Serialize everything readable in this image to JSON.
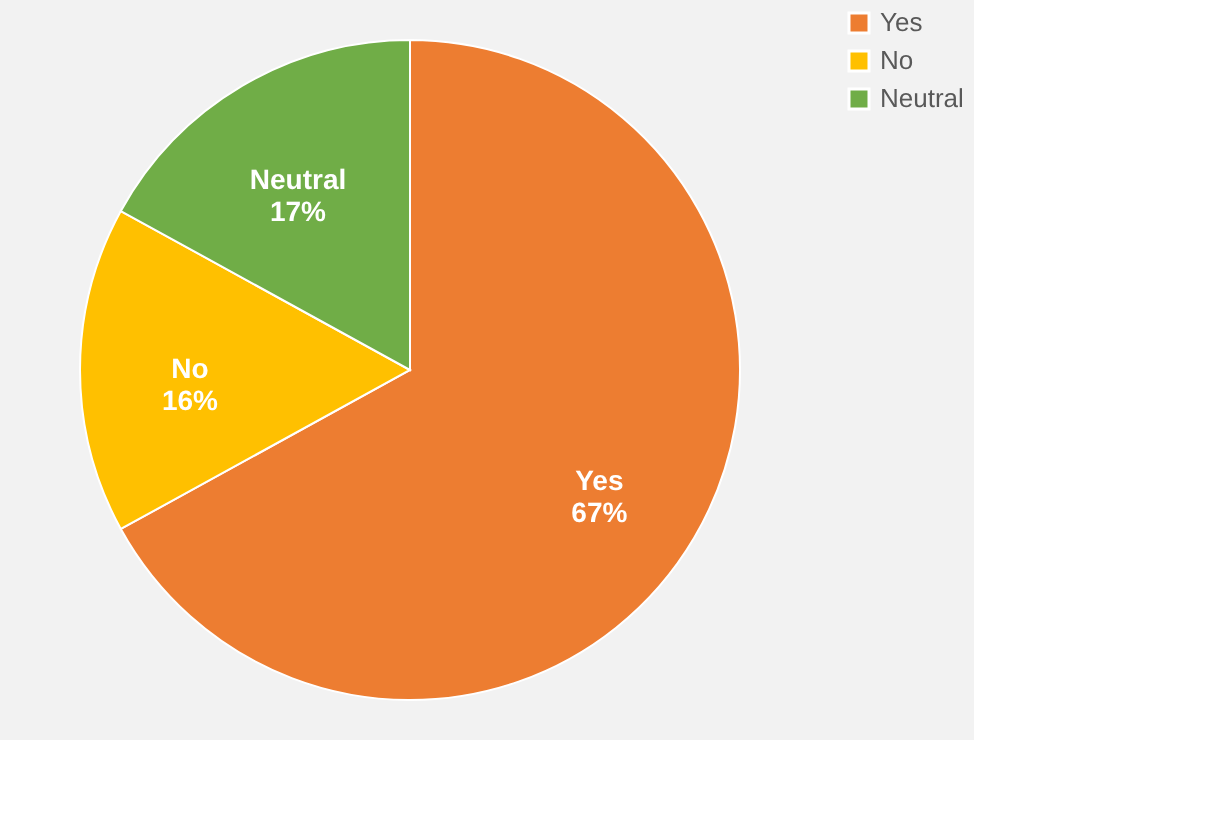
{
  "chart_data": {
    "type": "pie",
    "categories": [
      "Yes",
      "No",
      "Neutral"
    ],
    "values": [
      67,
      16,
      17
    ],
    "colors": [
      "#ed7d31",
      "#ffc000",
      "#70ad47"
    ],
    "value_labels": [
      "67%",
      "16%",
      "17%"
    ],
    "legend": "right"
  }
}
